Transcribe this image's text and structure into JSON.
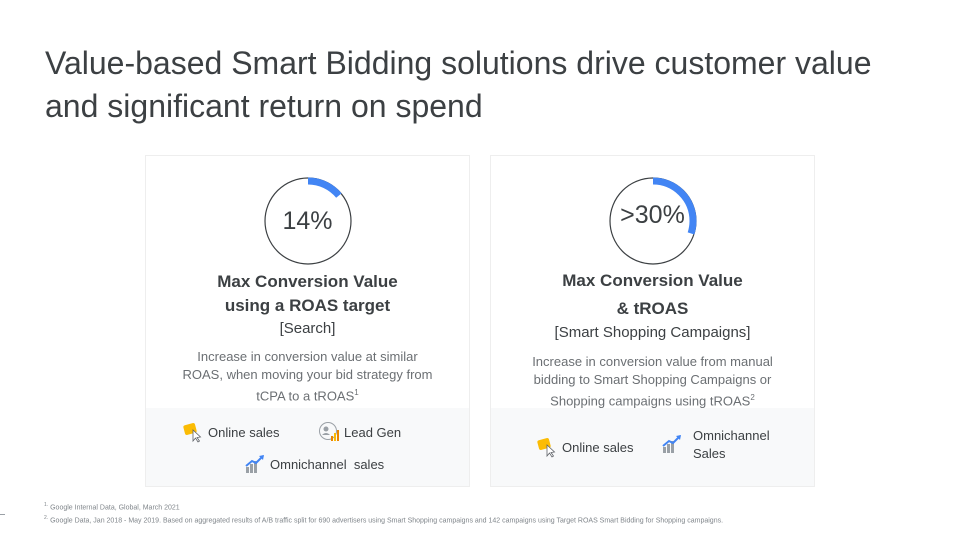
{
  "title": "Value-based Smart Bidding solutions drive customer value and significant return on spend",
  "colors": {
    "accent": "#4285f4",
    "ring_outline": "#3c4043",
    "tag_bg": "#f8f9fa"
  },
  "cards": [
    {
      "percent": "14%",
      "percent_value": 0.14,
      "title_line1": "Max Conversion Value",
      "title_line2": "using a ROAS target",
      "subtitle": "[Search]",
      "desc_line1": "Increase in conversion value at similar",
      "desc_line2": "ROAS, when moving your bid strategy from",
      "desc_line3": "tCPA to a tROAS",
      "desc_sup": "1",
      "tags": [
        {
          "label": "Online sales",
          "icon": "cart-cursor-icon"
        },
        {
          "label": "Lead Gen",
          "icon": "lead-gen-icon"
        },
        {
          "label": "Omnichannel  sales",
          "icon": "omnichannel-chart-icon"
        }
      ]
    },
    {
      "percent": ">30%",
      "percent_value": 0.3,
      "title_line1": "Max Conversion Value",
      "title_line2": "& tROAS",
      "subtitle": "[Smart Shopping Campaigns]",
      "desc_line1": "Increase in conversion value from manual",
      "desc_line2": "bidding to Smart Shopping Campaigns or",
      "desc_line3": "Shopping campaigns using tROAS",
      "desc_sup": "2",
      "tags": [
        {
          "label": "Online sales",
          "icon": "cart-cursor-icon"
        },
        {
          "label_line1": "Omnichannel",
          "label_line2": "Sales",
          "icon": "omnichannel-chart-icon"
        }
      ]
    }
  ],
  "footnotes": [
    {
      "sup": "1.",
      "text": " Google Internal Data, Global, March 2021"
    },
    {
      "sup": "2.",
      "text": " Google Data, Jan 2018 - May 2019. Based on aggregated results of A/B traffic split for 690 advertisers using Smart Shopping campaigns and 142 campaigns using Target ROAS Smart Bidding for Shopping campaigns."
    }
  ]
}
